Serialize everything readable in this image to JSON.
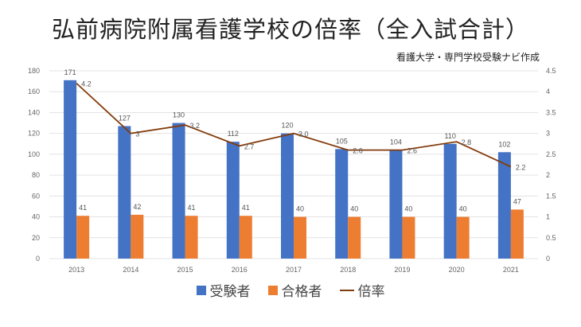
{
  "chart_data": {
    "type": "bar",
    "title": "弘前病院附属看護学校の倍率（全入試合計）",
    "subtitle": "看護大学・専門学校受験ナビ作成",
    "categories": [
      "2013",
      "2014",
      "2015",
      "2016",
      "2017",
      "2018",
      "2019",
      "2020",
      "2021"
    ],
    "series": [
      {
        "name": "受験者",
        "type": "bar",
        "axis": "left",
        "color": "#4472C4",
        "values": [
          171,
          127,
          130,
          112,
          120,
          105,
          104,
          110,
          102
        ],
        "labels": [
          "171",
          "127",
          "130",
          "112",
          "120",
          "105",
          "104",
          "110",
          "102"
        ]
      },
      {
        "name": "合格者",
        "type": "bar",
        "axis": "left",
        "color": "#ED7D31",
        "values": [
          41,
          42,
          41,
          41,
          40,
          40,
          40,
          40,
          47
        ],
        "labels": [
          "41",
          "42",
          "41",
          "41",
          "40",
          "40",
          "40",
          "40",
          "47"
        ]
      },
      {
        "name": "倍率",
        "type": "line",
        "axis": "right",
        "color": "#843C0C",
        "values": [
          4.2,
          3,
          3.2,
          2.7,
          3.0,
          2.6,
          2.6,
          2.8,
          2.2
        ],
        "labels": [
          "4.2",
          "3",
          "3.2",
          "2.7",
          "3.0",
          "2.6",
          "2.6",
          "2.8",
          "2.2"
        ]
      }
    ],
    "ylim": [
      0,
      180
    ],
    "yticks": [
      "0",
      "20",
      "40",
      "60",
      "80",
      "100",
      "120",
      "140",
      "160",
      "180"
    ],
    "y2lim": [
      0,
      4.5
    ],
    "y2ticks": [
      "0",
      "0.5",
      "1",
      "1.5",
      "2",
      "2.5",
      "3",
      "3.5",
      "4",
      "4.5"
    ],
    "grid": true,
    "legend": "bottom"
  }
}
